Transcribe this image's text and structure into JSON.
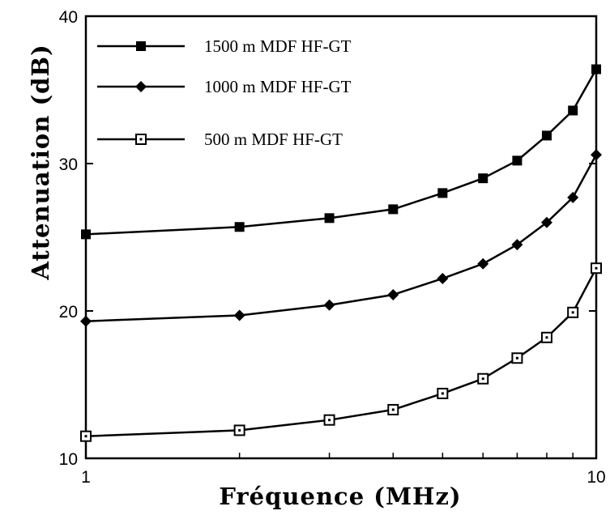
{
  "chart_data": {
    "type": "line",
    "title": "",
    "xlabel": "Fréquence   (MHz)",
    "ylabel": "Attenuation   (dB)",
    "xscale": "log",
    "xlim": [
      1,
      10
    ],
    "ylim": [
      10,
      40
    ],
    "xticks": [
      1,
      10
    ],
    "xtick_labels": [
      "1",
      "10"
    ],
    "yticks": [
      10,
      20,
      30,
      40
    ],
    "ytick_labels": [
      "10",
      "20",
      "30",
      "40"
    ],
    "grid": false,
    "legend_position": "top-left",
    "x": [
      1,
      2,
      3,
      4,
      5,
      6,
      7,
      8,
      9,
      10
    ],
    "series": [
      {
        "name": "1500 m MDF HF-GT",
        "marker": "filled-square",
        "values": [
          25.2,
          25.7,
          26.3,
          26.9,
          28.0,
          29.0,
          30.2,
          31.9,
          33.6,
          36.4
        ]
      },
      {
        "name": "1000 m MDF HF-GT",
        "marker": "filled-diamond",
        "values": [
          19.3,
          19.7,
          20.4,
          21.1,
          22.2,
          23.2,
          24.5,
          26.0,
          27.7,
          30.6
        ]
      },
      {
        "name": "500 m MDF HF-GT",
        "marker": "open-square",
        "values": [
          11.5,
          11.9,
          12.6,
          13.3,
          14.4,
          15.4,
          16.8,
          18.2,
          19.9,
          22.9
        ]
      }
    ]
  }
}
